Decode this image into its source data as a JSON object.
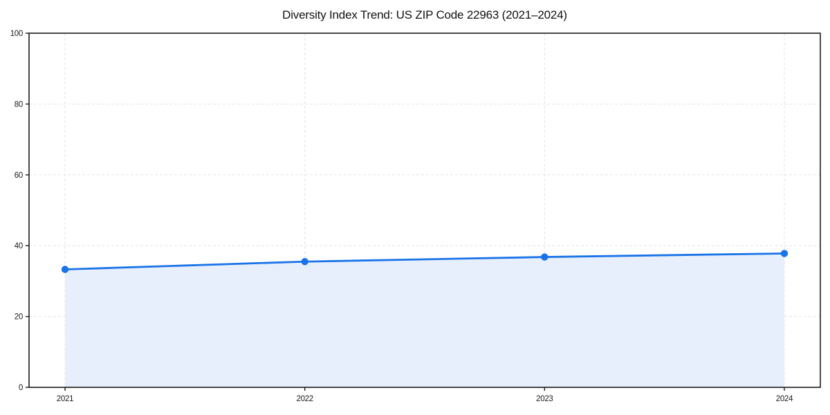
{
  "chart_data": {
    "type": "area",
    "title": "Diversity Index Trend: US ZIP Code 22963 (2021–2024)",
    "categories": [
      "2021",
      "2022",
      "2023",
      "2024"
    ],
    "values": [
      33.3,
      35.5,
      36.8,
      37.8
    ],
    "series_name": "Diversity Index",
    "xlabel": "",
    "ylabel": "",
    "ylim": [
      0,
      100
    ],
    "yticks": [
      0,
      20,
      40,
      60,
      80,
      100
    ],
    "grid": true,
    "grid_style": "dashed",
    "legend": "none",
    "colors": {
      "line": "#1a73e8",
      "marker": "#1a73e8",
      "fill": "#e8effc",
      "grid": "#e3e3e3",
      "spine": "#1a1a1a",
      "title_text": "#111111",
      "tick_text": "#1a1a1a",
      "background": "#ffffff"
    }
  }
}
